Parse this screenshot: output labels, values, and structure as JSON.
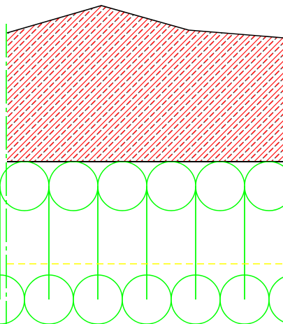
{
  "drawing": {
    "colors": {
      "background": "#ffffff",
      "outline": "#000000",
      "hatch_main": "#ff0000",
      "hatch_dash": "#222222",
      "insulation": "#00ff00",
      "centerline": "#ffff00",
      "axis": "#00ff00"
    },
    "layers": [
      {
        "name": "upper-layer",
        "pattern": "diagonal-hatch"
      },
      {
        "name": "insulation-layer",
        "pattern": "batt-insulation"
      },
      {
        "name": "centerline",
        "pattern": "dashed-line"
      }
    ]
  }
}
